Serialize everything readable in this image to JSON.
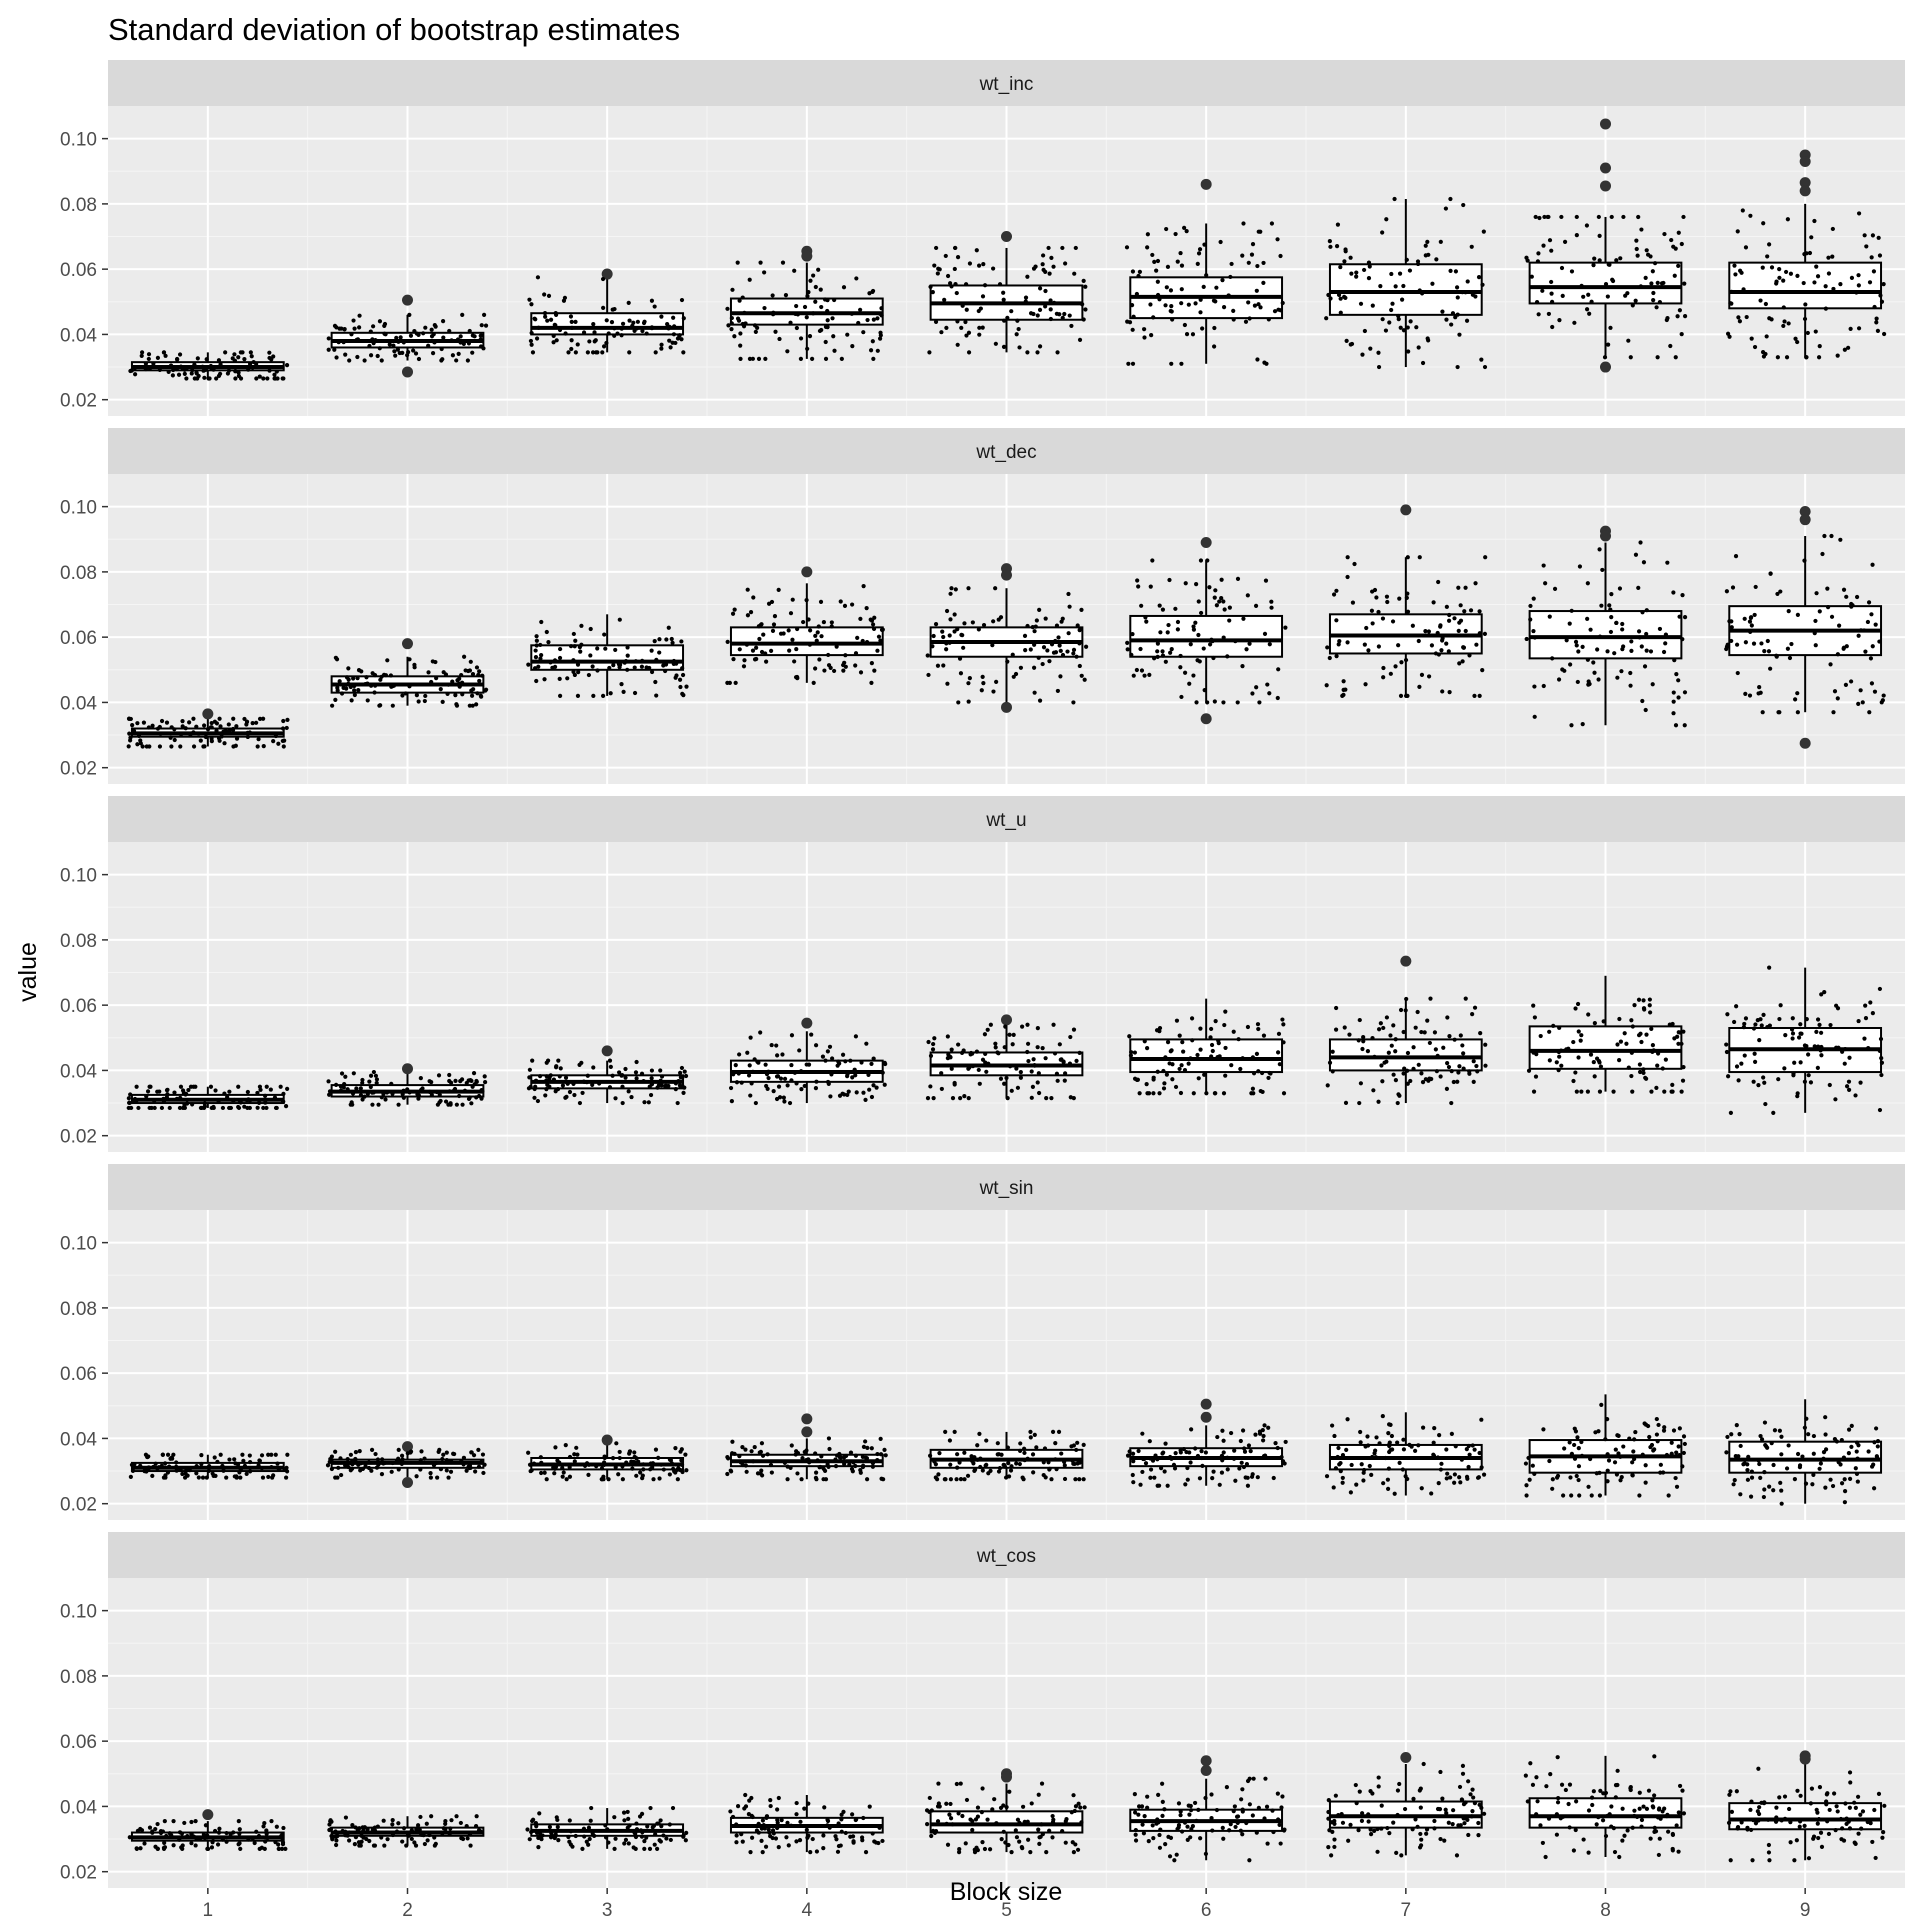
{
  "chart_data": {
    "type": "box",
    "title": "Standard deviation of bootstrap estimates",
    "xlabel": "Block size",
    "ylabel": "value",
    "categories": [
      "1",
      "2",
      "3",
      "4",
      "5",
      "6",
      "7",
      "8",
      "9"
    ],
    "ylim": [
      0.015,
      0.11
    ],
    "y_ticks": [
      "0.02",
      "0.04",
      "0.06",
      "0.08",
      "0.10"
    ],
    "y_tick_values": [
      0.02,
      0.04,
      0.06,
      0.08,
      0.1
    ],
    "grid": true,
    "facet_layout": "stacked vertically, shared x axis",
    "panels": [
      {
        "name": "wt_inc",
        "boxes": [
          {
            "q1": 0.029,
            "median": 0.03,
            "q3": 0.0315,
            "lower": 0.0265,
            "upper": 0.0345,
            "spread": 0.0035,
            "outliers": []
          },
          {
            "q1": 0.036,
            "median": 0.038,
            "q3": 0.0405,
            "lower": 0.032,
            "upper": 0.046,
            "spread": 0.004,
            "outliers": [
              0.0505,
              0.0285
            ]
          },
          {
            "q1": 0.04,
            "median": 0.042,
            "q3": 0.0465,
            "lower": 0.0345,
            "upper": 0.0575,
            "spread": 0.005,
            "outliers": [
              0.0585
            ]
          },
          {
            "q1": 0.043,
            "median": 0.0465,
            "q3": 0.051,
            "lower": 0.0325,
            "upper": 0.062,
            "spread": 0.008,
            "outliers": [
              0.0655,
              0.064
            ]
          },
          {
            "q1": 0.0445,
            "median": 0.0495,
            "q3": 0.055,
            "lower": 0.0345,
            "upper": 0.0665,
            "spread": 0.01,
            "outliers": [
              0.07
            ]
          },
          {
            "q1": 0.045,
            "median": 0.0515,
            "q3": 0.0575,
            "lower": 0.031,
            "upper": 0.074,
            "spread": 0.013,
            "outliers": [
              0.086
            ]
          },
          {
            "q1": 0.046,
            "median": 0.053,
            "q3": 0.0615,
            "lower": 0.03,
            "upper": 0.0815,
            "spread": 0.014,
            "outliers": []
          },
          {
            "q1": 0.0495,
            "median": 0.0545,
            "q3": 0.062,
            "lower": 0.033,
            "upper": 0.076,
            "spread": 0.013,
            "outliers": [
              0.1045,
              0.091,
              0.0855,
              0.03
            ]
          },
          {
            "q1": 0.048,
            "median": 0.053,
            "q3": 0.062,
            "lower": 0.033,
            "upper": 0.08,
            "spread": 0.014,
            "outliers": [
              0.095,
              0.093,
              0.0865,
              0.084
            ]
          }
        ]
      },
      {
        "name": "wt_dec",
        "boxes": [
          {
            "q1": 0.0295,
            "median": 0.0305,
            "q3": 0.032,
            "lower": 0.0265,
            "upper": 0.035,
            "spread": 0.0035,
            "outliers": [
              0.0365
            ]
          },
          {
            "q1": 0.043,
            "median": 0.0455,
            "q3": 0.048,
            "lower": 0.039,
            "upper": 0.054,
            "spread": 0.004,
            "outliers": [
              0.058
            ]
          },
          {
            "q1": 0.05,
            "median": 0.0525,
            "q3": 0.0575,
            "lower": 0.042,
            "upper": 0.067,
            "spread": 0.006,
            "outliers": []
          },
          {
            "q1": 0.0545,
            "median": 0.058,
            "q3": 0.063,
            "lower": 0.046,
            "upper": 0.0765,
            "spread": 0.008,
            "outliers": [
              0.08
            ]
          },
          {
            "q1": 0.054,
            "median": 0.0585,
            "q3": 0.063,
            "lower": 0.04,
            "upper": 0.075,
            "spread": 0.009,
            "outliers": [
              0.081,
              0.079,
              0.0385
            ]
          },
          {
            "q1": 0.054,
            "median": 0.059,
            "q3": 0.0665,
            "lower": 0.04,
            "upper": 0.0835,
            "spread": 0.011,
            "outliers": [
              0.089,
              0.035
            ]
          },
          {
            "q1": 0.055,
            "median": 0.0605,
            "q3": 0.067,
            "lower": 0.042,
            "upper": 0.0845,
            "spread": 0.012,
            "outliers": [
              0.099
            ]
          },
          {
            "q1": 0.0535,
            "median": 0.06,
            "q3": 0.068,
            "lower": 0.033,
            "upper": 0.089,
            "spread": 0.013,
            "outliers": [
              0.0925,
              0.091
            ]
          },
          {
            "q1": 0.0545,
            "median": 0.062,
            "q3": 0.0695,
            "lower": 0.037,
            "upper": 0.091,
            "spread": 0.014,
            "outliers": [
              0.0985,
              0.096,
              0.0275
            ]
          }
        ]
      },
      {
        "name": "wt_u",
        "boxes": [
          {
            "q1": 0.03,
            "median": 0.031,
            "q3": 0.0325,
            "lower": 0.0285,
            "upper": 0.035,
            "spread": 0.003,
            "outliers": []
          },
          {
            "q1": 0.032,
            "median": 0.0335,
            "q3": 0.0355,
            "lower": 0.0295,
            "upper": 0.0395,
            "spread": 0.003,
            "outliers": [
              0.0405
            ]
          },
          {
            "q1": 0.0345,
            "median": 0.0365,
            "q3": 0.0385,
            "lower": 0.03,
            "upper": 0.043,
            "spread": 0.0035,
            "outliers": [
              0.046
            ]
          },
          {
            "q1": 0.0365,
            "median": 0.0395,
            "q3": 0.043,
            "lower": 0.03,
            "upper": 0.052,
            "spread": 0.0055,
            "outliers": [
              0.0545
            ]
          },
          {
            "q1": 0.0385,
            "median": 0.0415,
            "q3": 0.0455,
            "lower": 0.0315,
            "upper": 0.054,
            "spread": 0.0065,
            "outliers": [
              0.0555
            ]
          },
          {
            "q1": 0.0395,
            "median": 0.0435,
            "q3": 0.0495,
            "lower": 0.033,
            "upper": 0.062,
            "spread": 0.008,
            "outliers": []
          },
          {
            "q1": 0.04,
            "median": 0.044,
            "q3": 0.0495,
            "lower": 0.03,
            "upper": 0.062,
            "spread": 0.0085,
            "outliers": [
              0.0735
            ]
          },
          {
            "q1": 0.0405,
            "median": 0.046,
            "q3": 0.0535,
            "lower": 0.0335,
            "upper": 0.069,
            "spread": 0.01,
            "outliers": []
          },
          {
            "q1": 0.0395,
            "median": 0.0465,
            "q3": 0.053,
            "lower": 0.027,
            "upper": 0.0715,
            "spread": 0.0105,
            "outliers": []
          }
        ]
      },
      {
        "name": "wt_sin",
        "boxes": [
          {
            "q1": 0.03,
            "median": 0.031,
            "q3": 0.0325,
            "lower": 0.028,
            "upper": 0.035,
            "spread": 0.0025,
            "outliers": []
          },
          {
            "q1": 0.031,
            "median": 0.0325,
            "q3": 0.0335,
            "lower": 0.028,
            "upper": 0.0365,
            "spread": 0.0025,
            "outliers": [
              0.0375,
              0.0265
            ]
          },
          {
            "q1": 0.0305,
            "median": 0.032,
            "q3": 0.034,
            "lower": 0.0275,
            "upper": 0.0385,
            "spread": 0.003,
            "outliers": [
              0.0395
            ]
          },
          {
            "q1": 0.0315,
            "median": 0.033,
            "q3": 0.035,
            "lower": 0.0275,
            "upper": 0.04,
            "spread": 0.0035,
            "outliers": [
              0.046,
              0.042
            ]
          },
          {
            "q1": 0.031,
            "median": 0.0335,
            "q3": 0.0365,
            "lower": 0.0275,
            "upper": 0.042,
            "spread": 0.004,
            "outliers": []
          },
          {
            "q1": 0.0315,
            "median": 0.034,
            "q3": 0.037,
            "lower": 0.0255,
            "upper": 0.044,
            "spread": 0.005,
            "outliers": [
              0.0505,
              0.0465
            ]
          },
          {
            "q1": 0.0305,
            "median": 0.034,
            "q3": 0.038,
            "lower": 0.0225,
            "upper": 0.048,
            "spread": 0.0055,
            "outliers": []
          },
          {
            "q1": 0.0295,
            "median": 0.0345,
            "q3": 0.0395,
            "lower": 0.0225,
            "upper": 0.0535,
            "spread": 0.0065,
            "outliers": []
          },
          {
            "q1": 0.0295,
            "median": 0.0335,
            "q3": 0.039,
            "lower": 0.02,
            "upper": 0.052,
            "spread": 0.0065,
            "outliers": []
          }
        ]
      },
      {
        "name": "wt_cos",
        "boxes": [
          {
            "q1": 0.0295,
            "median": 0.0305,
            "q3": 0.032,
            "lower": 0.027,
            "upper": 0.0355,
            "spread": 0.003,
            "outliers": [
              0.0375
            ]
          },
          {
            "q1": 0.031,
            "median": 0.032,
            "q3": 0.0335,
            "lower": 0.028,
            "upper": 0.037,
            "spread": 0.003,
            "outliers": []
          },
          {
            "q1": 0.031,
            "median": 0.0325,
            "q3": 0.0345,
            "lower": 0.027,
            "upper": 0.0395,
            "spread": 0.0035,
            "outliers": []
          },
          {
            "q1": 0.032,
            "median": 0.034,
            "q3": 0.0365,
            "lower": 0.026,
            "upper": 0.0435,
            "spread": 0.0045,
            "outliers": []
          },
          {
            "q1": 0.032,
            "median": 0.0345,
            "q3": 0.0385,
            "lower": 0.026,
            "upper": 0.047,
            "spread": 0.0055,
            "outliers": [
              0.05,
              0.049
            ]
          },
          {
            "q1": 0.0325,
            "median": 0.0355,
            "q3": 0.039,
            "lower": 0.0235,
            "upper": 0.0485,
            "spread": 0.006,
            "outliers": [
              0.054,
              0.051
            ]
          },
          {
            "q1": 0.0335,
            "median": 0.037,
            "q3": 0.0415,
            "lower": 0.025,
            "upper": 0.053,
            "spread": 0.006,
            "outliers": [
              0.055
            ]
          },
          {
            "q1": 0.0335,
            "median": 0.037,
            "q3": 0.0425,
            "lower": 0.0245,
            "upper": 0.0555,
            "spread": 0.0065,
            "outliers": []
          },
          {
            "q1": 0.033,
            "median": 0.036,
            "q3": 0.041,
            "lower": 0.0235,
            "upper": 0.053,
            "spread": 0.0065,
            "outliers": [
              0.0555,
              0.0545
            ]
          }
        ]
      }
    ]
  }
}
